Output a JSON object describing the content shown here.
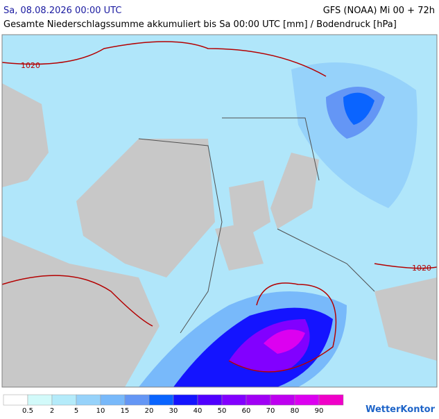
{
  "header": {
    "date": "Sa, 08.08.2026 00:00 UTC",
    "model": "GFS (NOAA) Mi 00 + 72h",
    "subtitle": "Gesamte Niederschlagssumme akkumuliert bis Sa 00:00 UTC [mm] / Bodendruck [hPa]"
  },
  "map": {
    "isobar_labels": [
      "1020",
      "1020"
    ]
  },
  "legend": {
    "labels": [
      0.5,
      2,
      5,
      10,
      15,
      20,
      30,
      40,
      50,
      60,
      70,
      80,
      90
    ],
    "colors": [
      "#ffffff",
      "#d2fafa",
      "#b4ebfa",
      "#96d2fa",
      "#78b9fa",
      "#6496f5",
      "#0a64ff",
      "#1414ff",
      "#5000ff",
      "#8200ff",
      "#a000f5",
      "#be00f0",
      "#dc00f0",
      "#f000c8"
    ]
  },
  "logo": "WetterKontor"
}
